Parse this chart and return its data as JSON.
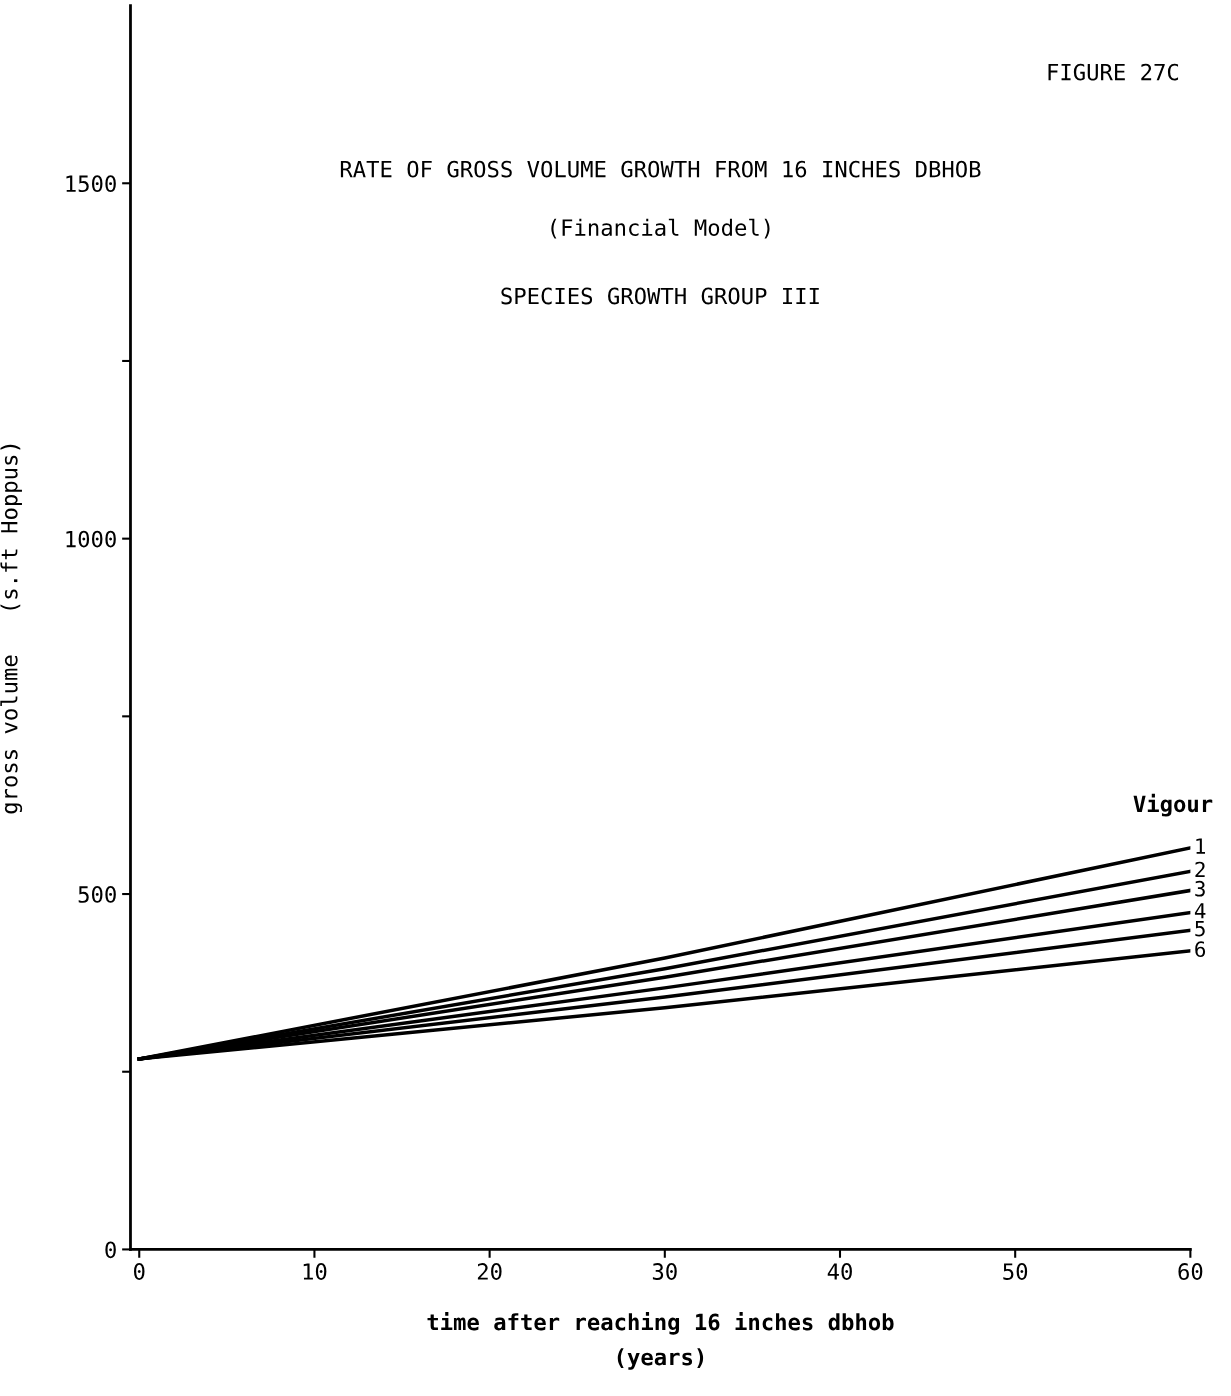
{
  "chart_data": {
    "type": "line",
    "title": "RATE OF GROSS VOLUME GROWTH FROM 16 INCHES DBHOB",
    "subtitle": "(Financial Model)",
    "annotations": [
      "SPECIES GROWTH GROUP III",
      "FIGURE 27C"
    ],
    "xlabel": "time after reaching 16 inches dbhob\n(years)",
    "ylabel": "gross volume   (s.ft Hoppus)",
    "legend_title": "Vigour",
    "x": [
      0,
      30,
      60
    ],
    "series": [
      {
        "name": "1",
        "color": "#000000",
        "values": [
          268,
          410,
          565
        ]
      },
      {
        "name": "2",
        "color": "#000000",
        "values": [
          268,
          395,
          532
        ]
      },
      {
        "name": "3",
        "color": "#000000",
        "values": [
          268,
          383,
          505
        ]
      },
      {
        "name": "4",
        "color": "#000000",
        "values": [
          268,
          368,
          474
        ]
      },
      {
        "name": "5",
        "color": "#000000",
        "values": [
          268,
          355,
          449
        ]
      },
      {
        "name": "6",
        "color": "#000000",
        "values": [
          268,
          340,
          420
        ]
      }
    ],
    "xlim": [
      -0.5,
      60
    ],
    "xticks": [
      0,
      10,
      20,
      30,
      40,
      50,
      60
    ],
    "ylim": [
      0,
      1750
    ],
    "yticks": [
      0,
      {
        "value": 250,
        "label": null
      },
      500,
      {
        "value": 750,
        "label": null
      },
      1000,
      {
        "value": 1250,
        "label": null
      },
      1500
    ],
    "grid": false,
    "legend": false,
    "marker": "none",
    "line_style": "solid"
  }
}
